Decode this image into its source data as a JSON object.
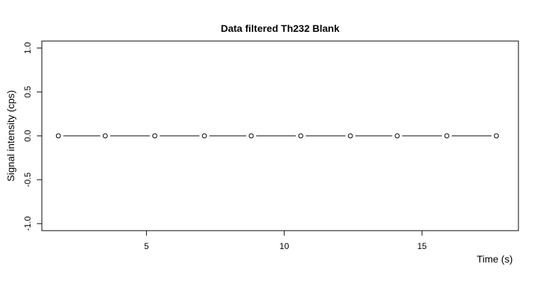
{
  "chart_data": {
    "type": "line",
    "title": "Data filtered Th232 Blank",
    "xlabel": "Time (s)",
    "ylabel": "Signal intensity (cps)",
    "xlim": [
      1.2,
      18.5
    ],
    "ylim": [
      -1.08,
      1.08
    ],
    "x_ticks": [
      5,
      10,
      15
    ],
    "x_tick_labels": [
      "5",
      "10",
      "15"
    ],
    "y_ticks": [
      -1.0,
      -0.5,
      0.0,
      0.5,
      1.0
    ],
    "y_tick_labels": [
      "-1.0",
      "-0.5",
      "0.0",
      "0.5",
      "1.0"
    ],
    "grid": false,
    "series": [
      {
        "x": [
          1.8,
          3.5,
          5.3,
          7.1,
          8.8,
          10.6,
          12.4,
          14.1,
          15.9,
          17.7
        ],
        "y": [
          0,
          0,
          0,
          0,
          0,
          0,
          0,
          0,
          0,
          0
        ],
        "marker": "open-circle",
        "line": "solid",
        "color": "#000000"
      }
    ]
  }
}
